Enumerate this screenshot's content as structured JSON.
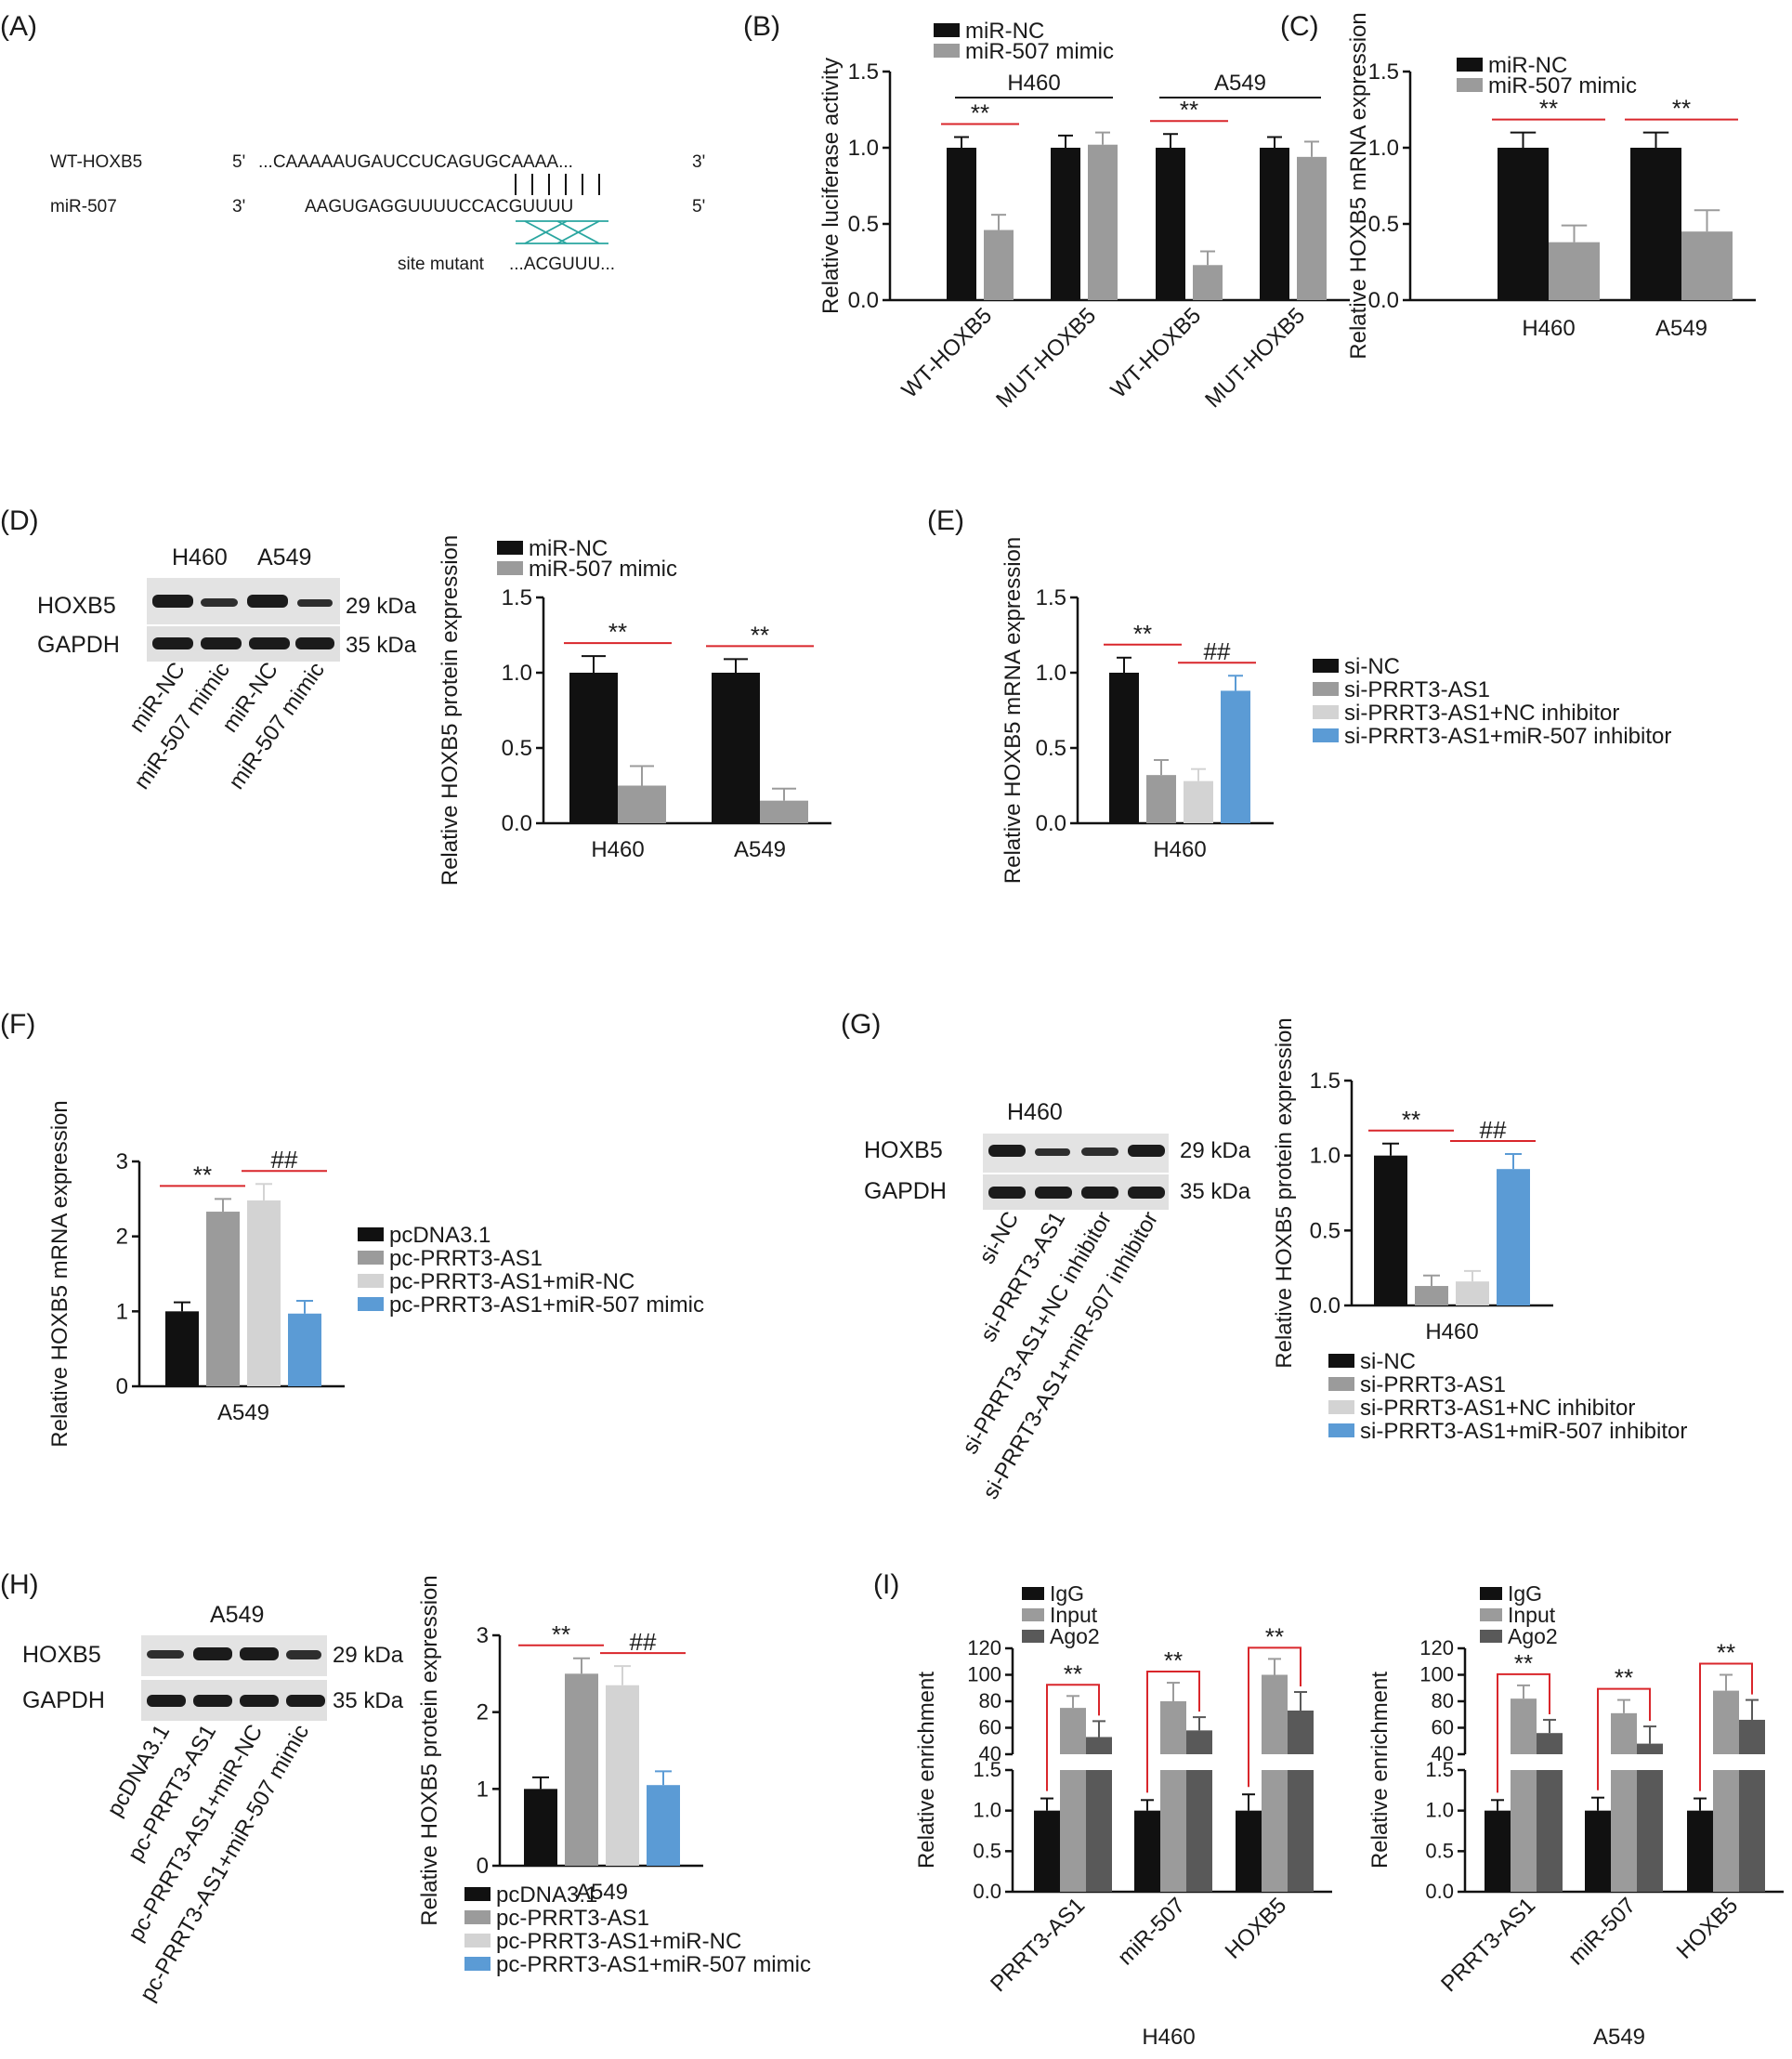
{
  "colors": {
    "black": "#111111",
    "gray": "#9b9b9b",
    "light": "#d3d3d3",
    "blue": "#5b9bd5",
    "dark": "#595959",
    "sig": "#d9262b"
  },
  "panels": {
    "A": {
      "label": "(A)",
      "wt_name": "WT-HOXB5",
      "wt_5": "5'",
      "wt_seq": "...CAAAAAUGAUCCUCAGUGCAAAA...",
      "wt_3": "3'",
      "mir_name": "miR-507",
      "mir_3": "3'",
      "mir_seq": "AAGUGAGGUUUUCCACGUUUU",
      "mir_5": "5'",
      "mut_label": "site mutant",
      "mut_seq": "...ACGUUU..."
    },
    "D": {
      "label": "(D)",
      "cell_lines": [
        "H460",
        "A549"
      ],
      "proteins": [
        "HOXB5",
        "GAPDH"
      ],
      "kda": [
        "29 kDa",
        "35 kDa"
      ],
      "lanes": [
        "miR-NC",
        "miR-507 mimic",
        "miR-NC",
        "miR-507 mimic"
      ]
    },
    "G": {
      "label": "(G)",
      "cell_line": "H460",
      "proteins": [
        "HOXB5",
        "GAPDH"
      ],
      "kda": [
        "29 kDa",
        "35 kDa"
      ],
      "lanes": [
        "si-NC",
        "si-PRRT3-AS1",
        "si-PRRT3-AS1+NC inhibitor",
        "si-PRRT3-AS1+miR-507 inhibitor"
      ]
    },
    "H": {
      "label": "(H)",
      "cell_line": "A549",
      "proteins": [
        "HOXB5",
        "GAPDH"
      ],
      "kda": [
        "29 kDa",
        "35 kDa"
      ],
      "lanes": [
        "pcDNA3.1",
        "pc-PRRT3-AS1",
        "pc-PRRT3-AS1+miR-NC",
        "pc-PRRT3-AS1+miR-507 mimic"
      ]
    },
    "I": {
      "label": "(I)"
    }
  },
  "chart_data": [
    {
      "id": "B",
      "label": "(B)",
      "type": "bar",
      "ylabel": "Relative luciferase activity",
      "ylim": [
        0,
        1.5
      ],
      "yticks": [
        "0.0",
        "0.5",
        "1.0",
        "1.5"
      ],
      "categories": [
        "WT-HOXB5",
        "MUT-HOXB5",
        "WT-HOXB5",
        "MUT-HOXB5"
      ],
      "groups": [
        "H460",
        "A549"
      ],
      "series": [
        {
          "name": "miR-NC",
          "color": "black",
          "values": [
            1.0,
            1.0,
            1.0,
            1.0
          ],
          "errors": [
            0.07,
            0.08,
            0.09,
            0.07
          ]
        },
        {
          "name": "miR-507 mimic",
          "color": "gray",
          "values": [
            0.46,
            1.02,
            0.23,
            0.94
          ],
          "errors": [
            0.1,
            0.08,
            0.09,
            0.1
          ]
        }
      ],
      "sig": [
        {
          "label": "**",
          "cat": 0
        },
        {
          "label": "**",
          "cat": 2
        }
      ]
    },
    {
      "id": "C",
      "label": "(C)",
      "type": "bar",
      "ylabel": "Relative HOXB5 mRNA expression",
      "ylim": [
        0,
        1.5
      ],
      "yticks": [
        "0.0",
        "0.5",
        "1.0",
        "1.5"
      ],
      "categories": [
        "H460",
        "A549"
      ],
      "series": [
        {
          "name": "miR-NC",
          "color": "black",
          "values": [
            1.0,
            1.0
          ],
          "errors": [
            0.1,
            0.1
          ]
        },
        {
          "name": "miR-507 mimic",
          "color": "gray",
          "values": [
            0.38,
            0.45
          ],
          "errors": [
            0.11,
            0.14
          ]
        }
      ],
      "sig": [
        {
          "label": "**",
          "cat": 0
        },
        {
          "label": "**",
          "cat": 1
        }
      ]
    },
    {
      "id": "D",
      "type": "bar",
      "ylabel": "Relative HOXB5 protein expression",
      "ylim": [
        0,
        1.5
      ],
      "yticks": [
        "0.0",
        "0.5",
        "1.0",
        "1.5"
      ],
      "categories": [
        "H460",
        "A549"
      ],
      "series": [
        {
          "name": "miR-NC",
          "color": "black",
          "values": [
            1.0,
            1.0
          ],
          "errors": [
            0.11,
            0.09
          ]
        },
        {
          "name": "miR-507 mimic",
          "color": "gray",
          "values": [
            0.25,
            0.15
          ],
          "errors": [
            0.13,
            0.08
          ]
        }
      ],
      "sig": [
        {
          "label": "**",
          "cat": 0
        },
        {
          "label": "**",
          "cat": 1
        }
      ]
    },
    {
      "id": "E",
      "label": "(E)",
      "type": "bar",
      "ylabel": "Relative HOXB5 mRNA expression",
      "ylim": [
        0,
        1.5
      ],
      "yticks": [
        "0.0",
        "0.5",
        "1.0",
        "1.5"
      ],
      "categories": [
        "H460"
      ],
      "series": [
        {
          "name": "si-NC",
          "color": "black",
          "values": [
            1.0
          ],
          "errors": [
            0.1
          ]
        },
        {
          "name": "si-PRRT3-AS1",
          "color": "gray",
          "values": [
            0.32
          ],
          "errors": [
            0.1
          ]
        },
        {
          "name": "si-PRRT3-AS1+NC inhibitor",
          "color": "light",
          "values": [
            0.28
          ],
          "errors": [
            0.08
          ]
        },
        {
          "name": "si-PRRT3-AS1+miR-507 inhibitor",
          "color": "blue",
          "values": [
            0.88
          ],
          "errors": [
            0.1
          ]
        }
      ],
      "sig": [
        {
          "label": "**",
          "a": 0,
          "b": 1
        },
        {
          "label": "##",
          "a": 2,
          "b": 3
        }
      ]
    },
    {
      "id": "F",
      "label": "(F)",
      "type": "bar",
      "ylabel": "Relative HOXB5 mRNA expression",
      "ylim": [
        0,
        3
      ],
      "yticks": [
        "0",
        "1",
        "2",
        "3"
      ],
      "categories": [
        "A549"
      ],
      "series": [
        {
          "name": "pcDNA3.1",
          "color": "black",
          "values": [
            1.0
          ],
          "errors": [
            0.12
          ]
        },
        {
          "name": "pc-PRRT3-AS1",
          "color": "gray",
          "values": [
            2.33
          ],
          "errors": [
            0.17
          ]
        },
        {
          "name": "pc-PRRT3-AS1+miR-NC",
          "color": "light",
          "values": [
            2.48
          ],
          "errors": [
            0.22
          ]
        },
        {
          "name": "pc-PRRT3-AS1+miR-507 mimic",
          "color": "blue",
          "values": [
            0.97
          ],
          "errors": [
            0.17
          ]
        }
      ],
      "sig": [
        {
          "label": "**",
          "a": 0,
          "b": 1
        },
        {
          "label": "##",
          "a": 2,
          "b": 3
        }
      ]
    },
    {
      "id": "G",
      "type": "bar",
      "ylabel": "Relative HOXB5 protein expression",
      "ylim": [
        0,
        1.5
      ],
      "yticks": [
        "0.0",
        "0.5",
        "1.0",
        "1.5"
      ],
      "categories": [
        "H460"
      ],
      "series": [
        {
          "name": "si-NC",
          "color": "black",
          "values": [
            1.0
          ],
          "errors": [
            0.08
          ]
        },
        {
          "name": "si-PRRT3-AS1",
          "color": "gray",
          "values": [
            0.13
          ],
          "errors": [
            0.07
          ]
        },
        {
          "name": "si-PRRT3-AS1+NC inhibitor",
          "color": "light",
          "values": [
            0.16
          ],
          "errors": [
            0.07
          ]
        },
        {
          "name": "si-PRRT3-AS1+miR-507 inhibitor",
          "color": "blue",
          "values": [
            0.91
          ],
          "errors": [
            0.1
          ]
        }
      ],
      "sig": [
        {
          "label": "**",
          "a": 0,
          "b": 1
        },
        {
          "label": "##",
          "a": 2,
          "b": 3
        }
      ]
    },
    {
      "id": "H",
      "type": "bar",
      "ylabel": "Relative HOXB5 protein expression",
      "ylim": [
        0,
        3
      ],
      "yticks": [
        "0",
        "1",
        "2",
        "3"
      ],
      "categories": [
        "A549"
      ],
      "series": [
        {
          "name": "pcDNA3.1",
          "color": "black",
          "values": [
            1.0
          ],
          "errors": [
            0.15
          ]
        },
        {
          "name": "pc-PRRT3-AS1",
          "color": "gray",
          "values": [
            2.5
          ],
          "errors": [
            0.2
          ]
        },
        {
          "name": "pc-PRRT3-AS1+miR-NC",
          "color": "light",
          "values": [
            2.35
          ],
          "errors": [
            0.25
          ]
        },
        {
          "name": "pc-PRRT3-AS1+miR-507 mimic",
          "color": "blue",
          "values": [
            1.05
          ],
          "errors": [
            0.18
          ]
        }
      ],
      "sig": [
        {
          "label": "**",
          "a": 0,
          "b": 1
        },
        {
          "label": "##",
          "a": 2,
          "b": 3
        }
      ]
    },
    {
      "id": "I1",
      "type": "bar",
      "xlabel": "H460",
      "ylabel": "Relative enrichment",
      "broken_axis": true,
      "yticks_low": [
        "0.0",
        "0.5",
        "1.0",
        "1.5"
      ],
      "yticks_high": [
        "40",
        "60",
        "80",
        "100",
        "120"
      ],
      "categories": [
        "PRRT3-AS1",
        "miR-507",
        "HOXB5"
      ],
      "series": [
        {
          "name": "IgG",
          "color": "black",
          "values": [
            1.0,
            1.0,
            1.0
          ],
          "errors": [
            0.15,
            0.13,
            0.2
          ]
        },
        {
          "name": "Input",
          "color": "gray",
          "values": [
            75,
            80,
            100
          ],
          "errors": [
            9,
            14,
            12
          ]
        },
        {
          "name": "Ago2",
          "color": "dark",
          "values": [
            53,
            58,
            73
          ],
          "errors": [
            12,
            10,
            14
          ]
        }
      ],
      "sig": [
        {
          "label": "**",
          "cat": 0
        },
        {
          "label": "**",
          "cat": 1
        },
        {
          "label": "**",
          "cat": 2
        }
      ]
    },
    {
      "id": "I2",
      "type": "bar",
      "xlabel": "A549",
      "ylabel": "Relative enrichment",
      "broken_axis": true,
      "yticks_low": [
        "0.0",
        "0.5",
        "1.0",
        "1.5"
      ],
      "yticks_high": [
        "40",
        "60",
        "80",
        "100",
        "120"
      ],
      "categories": [
        "PRRT3-AS1",
        "miR-507",
        "HOXB5"
      ],
      "series": [
        {
          "name": "IgG",
          "color": "black",
          "values": [
            1.0,
            1.0,
            1.0
          ],
          "errors": [
            0.13,
            0.16,
            0.15
          ]
        },
        {
          "name": "Input",
          "color": "gray",
          "values": [
            82,
            71,
            88
          ],
          "errors": [
            10,
            10,
            12
          ]
        },
        {
          "name": "Ago2",
          "color": "dark",
          "values": [
            56,
            48,
            66
          ],
          "errors": [
            10,
            13,
            15
          ]
        }
      ],
      "sig": [
        {
          "label": "**",
          "cat": 0
        },
        {
          "label": "**",
          "cat": 1
        },
        {
          "label": "**",
          "cat": 2
        }
      ]
    }
  ]
}
